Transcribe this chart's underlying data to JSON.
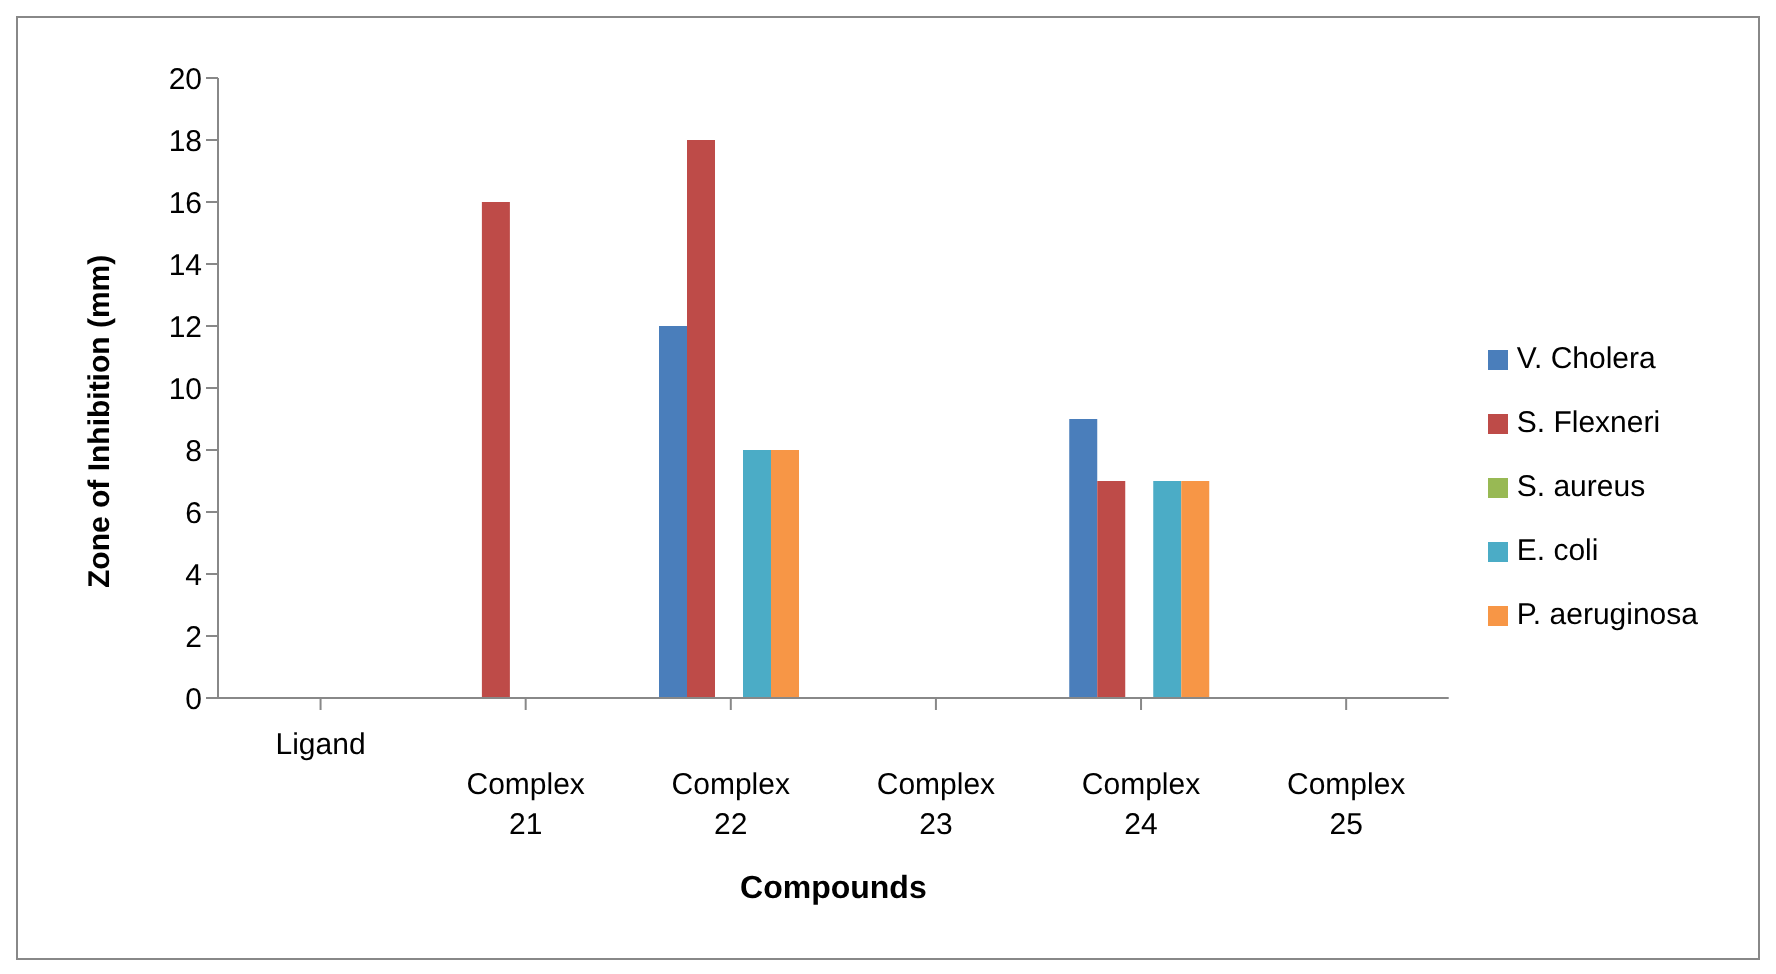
{
  "chart_data": {
    "type": "bar",
    "xlabel": "Compounds",
    "ylabel": "Zone of Inhibition (mm)",
    "categories": [
      "Ligand",
      "Complex 21",
      "Complex 22",
      "Complex 23",
      "Complex 24",
      "Complex 25"
    ],
    "series": [
      {
        "name": "V. Cholera",
        "color": "#4a7ebb",
        "values": [
          0,
          0,
          12,
          0,
          9,
          0
        ]
      },
      {
        "name": "S. Flexneri",
        "color": "#be4b48",
        "values": [
          0,
          16,
          18,
          0,
          7,
          0
        ]
      },
      {
        "name": "S. aureus",
        "color": "#98b954",
        "values": [
          0,
          0,
          0,
          0,
          0,
          0
        ]
      },
      {
        "name": "E. coli",
        "color": "#4bacc6",
        "values": [
          0,
          0,
          8,
          0,
          7,
          0
        ]
      },
      {
        "name": "P. aeruginosa",
        "color": "#f79646",
        "values": [
          0,
          0,
          8,
          0,
          7,
          0
        ]
      }
    ],
    "ylim": [
      0,
      20
    ],
    "yticks": [
      0,
      2,
      4,
      6,
      8,
      10,
      12,
      14,
      16,
      18,
      20
    ],
    "grid": false,
    "legend": "right"
  }
}
